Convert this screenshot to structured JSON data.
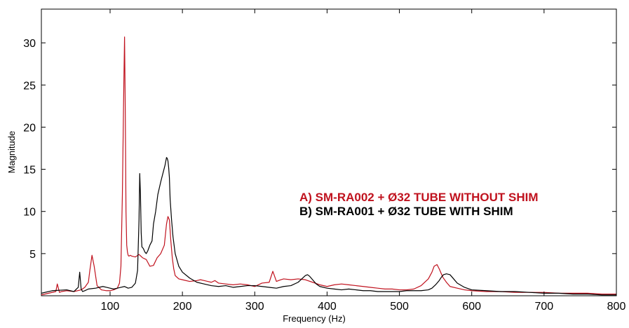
{
  "chart_data": {
    "type": "line",
    "title": "",
    "xlabel": "Frequency (Hz)",
    "ylabel": "Magnitude",
    "xlim": [
      5,
      800
    ],
    "ylim": [
      0,
      34
    ],
    "xticks": [
      100,
      200,
      300,
      400,
      500,
      600,
      700,
      800
    ],
    "yticks": [
      5,
      10,
      15,
      20,
      25,
      30
    ],
    "grid": false,
    "legend_position": "center-right",
    "series": [
      {
        "name": "A) SM-RA002 + Ø32 TUBE WITHOUT SHIM",
        "color": "#c0121e",
        "x": [
          5,
          15,
          25,
          27,
          30,
          33,
          40,
          50,
          60,
          65,
          70,
          72,
          75,
          78,
          82,
          88,
          95,
          100,
          105,
          110,
          113,
          115,
          117,
          119,
          120,
          121,
          122,
          123,
          124,
          125,
          126,
          128,
          130,
          135,
          140,
          145,
          150,
          155,
          160,
          165,
          170,
          175,
          178,
          180,
          182,
          184,
          186,
          188,
          190,
          195,
          200,
          210,
          220,
          225,
          230,
          235,
          240,
          245,
          250,
          260,
          270,
          280,
          290,
          300,
          310,
          320,
          325,
          330,
          333,
          336,
          340,
          350,
          360,
          370,
          380,
          390,
          400,
          410,
          420,
          430,
          440,
          450,
          460,
          470,
          480,
          490,
          500,
          510,
          520,
          530,
          540,
          545,
          548,
          552,
          555,
          560,
          565,
          570,
          580,
          590,
          600,
          620,
          640,
          660,
          680,
          700,
          720,
          740,
          760,
          780,
          800
        ],
        "y": [
          0.1,
          0.3,
          0.5,
          1.4,
          0.4,
          0.5,
          0.6,
          0.5,
          0.7,
          1.0,
          1.6,
          3.0,
          4.8,
          3.5,
          1.2,
          0.7,
          0.6,
          0.6,
          0.7,
          0.9,
          1.5,
          3.5,
          12.0,
          25.0,
          30.7,
          22.0,
          10.0,
          6.0,
          5.2,
          4.8,
          4.7,
          4.8,
          4.7,
          4.6,
          4.9,
          4.5,
          4.3,
          3.5,
          3.6,
          4.5,
          5.0,
          6.0,
          8.5,
          9.4,
          9.0,
          6.5,
          4.5,
          3.2,
          2.4,
          2.0,
          1.9,
          1.7,
          1.8,
          1.9,
          1.8,
          1.7,
          1.6,
          1.8,
          1.5,
          1.4,
          1.3,
          1.4,
          1.3,
          1.1,
          1.5,
          1.6,
          2.9,
          1.7,
          1.8,
          1.9,
          2.0,
          1.9,
          2.0,
          1.9,
          1.6,
          1.3,
          1.1,
          1.3,
          1.4,
          1.3,
          1.2,
          1.1,
          1.0,
          0.9,
          0.8,
          0.8,
          0.7,
          0.7,
          0.8,
          1.2,
          2.0,
          2.8,
          3.5,
          3.7,
          3.2,
          2.2,
          1.6,
          1.1,
          0.9,
          0.7,
          0.6,
          0.5,
          0.5,
          0.4,
          0.4,
          0.4,
          0.3,
          0.3,
          0.3,
          0.2,
          0.2
        ]
      },
      {
        "name": "B) SM-RA001 + Ø32 TUBE WITH SHIM",
        "color": "#000000",
        "x": [
          5,
          20,
          40,
          50,
          56,
          58,
          60,
          62,
          65,
          70,
          80,
          90,
          95,
          100,
          105,
          110,
          115,
          120,
          125,
          130,
          135,
          138,
          140,
          141,
          142,
          143,
          144,
          146,
          148,
          150,
          152,
          155,
          158,
          160,
          163,
          166,
          170,
          173,
          176,
          178,
          179,
          180,
          181,
          182,
          183,
          185,
          187,
          190,
          195,
          200,
          210,
          220,
          230,
          240,
          250,
          260,
          270,
          280,
          290,
          300,
          310,
          320,
          330,
          340,
          350,
          360,
          365,
          370,
          373,
          376,
          380,
          385,
          390,
          400,
          410,
          420,
          430,
          440,
          450,
          460,
          470,
          480,
          490,
          500,
          510,
          520,
          530,
          540,
          545,
          550,
          555,
          558,
          561,
          565,
          570,
          575,
          580,
          590,
          600,
          620,
          640,
          660,
          680,
          700,
          720,
          740,
          760,
          780,
          800
        ],
        "y": [
          0.3,
          0.6,
          0.7,
          0.5,
          1.0,
          2.8,
          0.8,
          0.5,
          0.6,
          0.8,
          0.9,
          1.1,
          1.0,
          0.9,
          0.8,
          0.9,
          1.0,
          1.1,
          0.9,
          1.0,
          1.5,
          3.0,
          9.0,
          14.5,
          12.0,
          7.5,
          5.8,
          5.6,
          5.2,
          5.0,
          5.3,
          6.0,
          6.5,
          8.5,
          10.0,
          12.0,
          13.5,
          14.5,
          15.5,
          16.4,
          16.3,
          16.0,
          15.2,
          14.0,
          11.5,
          9.0,
          7.0,
          5.0,
          3.5,
          2.8,
          2.1,
          1.6,
          1.4,
          1.2,
          1.1,
          1.2,
          1.0,
          1.1,
          1.2,
          1.2,
          1.1,
          1.0,
          0.9,
          1.1,
          1.2,
          1.6,
          2.0,
          2.4,
          2.5,
          2.3,
          1.9,
          1.4,
          1.1,
          0.9,
          0.8,
          0.7,
          0.8,
          0.7,
          0.6,
          0.6,
          0.5,
          0.5,
          0.5,
          0.5,
          0.6,
          0.6,
          0.6,
          0.7,
          0.9,
          1.3,
          1.8,
          2.2,
          2.5,
          2.6,
          2.5,
          2.0,
          1.5,
          1.0,
          0.7,
          0.6,
          0.5,
          0.5,
          0.4,
          0.3,
          0.3,
          0.2,
          0.2,
          0.1,
          0.1
        ]
      }
    ]
  }
}
